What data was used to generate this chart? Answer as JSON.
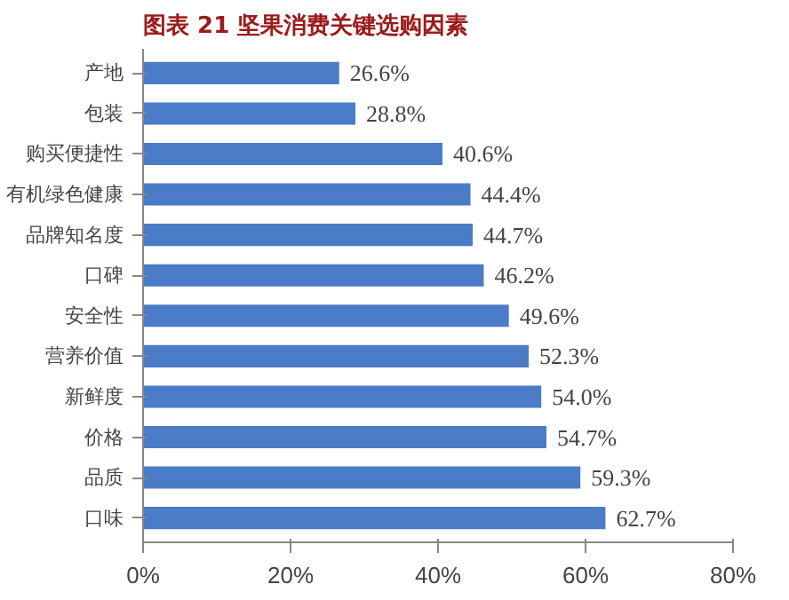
{
  "chart_data": {
    "type": "bar",
    "orientation": "horizontal",
    "title": "图表 21  坚果消费关键选购因素",
    "categories": [
      "产地",
      "包装",
      "购买便捷性",
      "有机绿色健康",
      "品牌知名度",
      "口碑",
      "安全性",
      "营养价值",
      "新鲜度",
      "价格",
      "品质",
      "口味"
    ],
    "values": [
      26.6,
      28.8,
      40.6,
      44.4,
      44.7,
      46.2,
      49.6,
      52.3,
      54.0,
      54.7,
      59.3,
      62.7
    ],
    "value_labels": [
      "26.6%",
      "28.8%",
      "40.6%",
      "44.4%",
      "44.7%",
      "46.2%",
      "49.6%",
      "52.3%",
      "54.0%",
      "54.7%",
      "59.3%",
      "62.7%"
    ],
    "color": "#4a7cc7",
    "xlim": [
      0,
      80
    ],
    "xticks": [
      {
        "value": 0,
        "label": "0%"
      },
      {
        "value": 20,
        "label": "20%"
      },
      {
        "value": 40,
        "label": "40%"
      },
      {
        "value": 60,
        "label": "60%"
      },
      {
        "value": 80,
        "label": "80%"
      }
    ],
    "grid": false
  }
}
